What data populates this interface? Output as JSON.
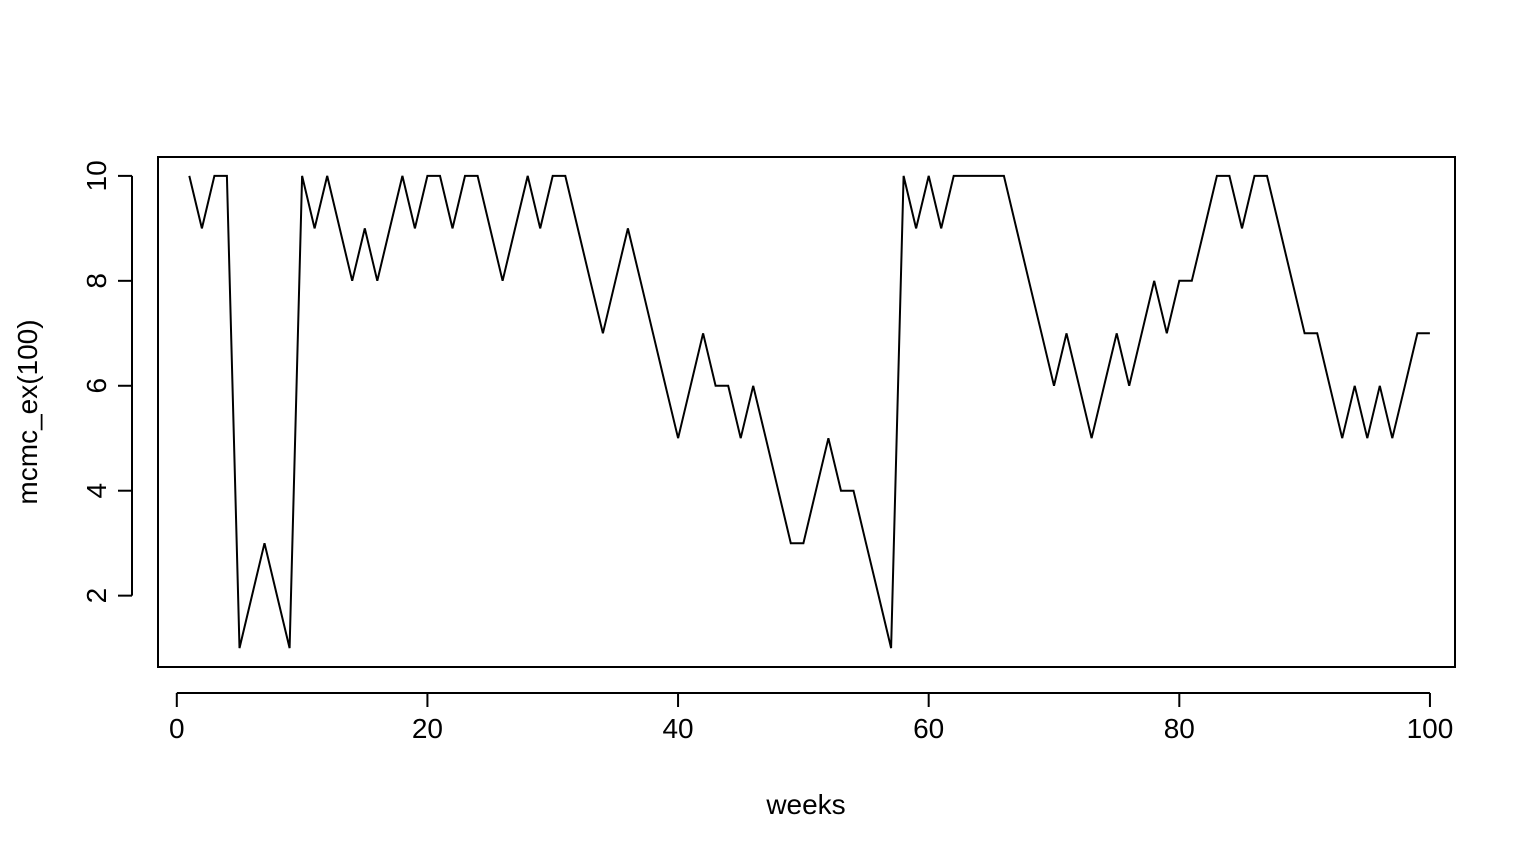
{
  "chart_data": {
    "type": "line",
    "title": "",
    "xlabel": "weeks",
    "ylabel": "mcmc_ex(100)",
    "xlim": [
      -1.5,
      102
    ],
    "ylim": [
      0.64,
      10.36
    ],
    "xticks": [
      0,
      20,
      40,
      60,
      80,
      100
    ],
    "yticks": [
      2,
      4,
      6,
      8,
      10
    ],
    "grid": false,
    "line_color": "#000000",
    "series": [
      {
        "name": "mcmc_ex(100)",
        "x": [
          1,
          2,
          3,
          4,
          5,
          6,
          7,
          8,
          9,
          10,
          11,
          12,
          13,
          14,
          15,
          16,
          17,
          18,
          19,
          20,
          21,
          22,
          23,
          24,
          25,
          26,
          27,
          28,
          29,
          30,
          31,
          32,
          33,
          34,
          35,
          36,
          37,
          38,
          39,
          40,
          41,
          42,
          43,
          44,
          45,
          46,
          47,
          48,
          49,
          50,
          51,
          52,
          53,
          54,
          55,
          56,
          57,
          58,
          59,
          60,
          61,
          62,
          63,
          64,
          65,
          66,
          67,
          68,
          69,
          70,
          71,
          72,
          73,
          74,
          75,
          76,
          77,
          78,
          79,
          80,
          81,
          82,
          83,
          84,
          85,
          86,
          87,
          88,
          89,
          90,
          91,
          92,
          93,
          94,
          95,
          96,
          97,
          98,
          99,
          100
        ],
        "values": [
          10,
          9,
          10,
          10,
          1,
          2,
          3,
          2,
          1,
          10,
          9,
          10,
          9,
          8,
          9,
          8,
          9,
          10,
          9,
          10,
          10,
          9,
          10,
          10,
          9,
          8,
          9,
          10,
          9,
          10,
          10,
          9,
          8,
          7,
          8,
          9,
          8,
          7,
          6,
          5,
          6,
          7,
          6,
          6,
          5,
          6,
          5,
          4,
          3,
          3,
          4,
          5,
          4,
          4,
          3,
          2,
          1,
          10,
          9,
          10,
          9,
          10,
          10,
          10,
          10,
          10,
          9,
          8,
          7,
          6,
          7,
          6,
          5,
          6,
          7,
          6,
          7,
          8,
          7,
          8,
          8,
          9,
          10,
          10,
          9,
          10,
          10,
          9,
          8,
          7,
          7,
          6,
          5,
          6,
          5,
          6,
          5,
          6,
          7,
          7
        ]
      }
    ]
  }
}
